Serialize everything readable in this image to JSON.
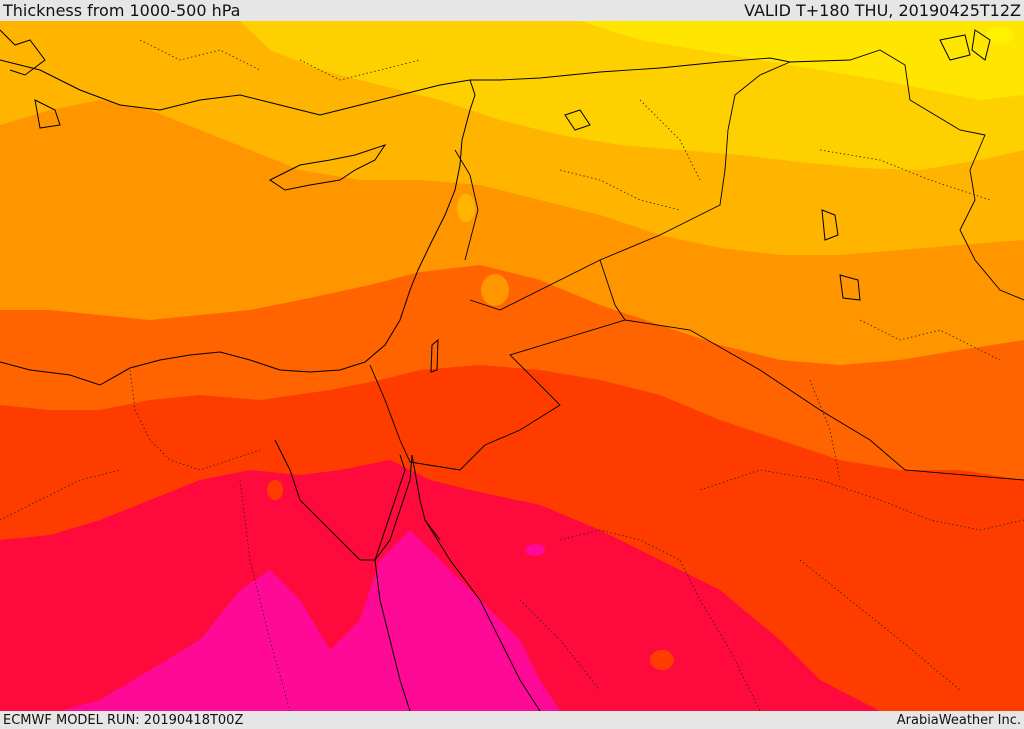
{
  "header": {
    "title": "Thickness from 1000-500 hPa",
    "valid_time": "VALID T+180 THU, 20190425T12Z"
  },
  "footer": {
    "model_run": "ECMWF MODEL RUN: 20190418T00Z",
    "credit": "ArabiaWeather Inc."
  },
  "map": {
    "field": "1000-500 hPa thickness",
    "palette": {
      "band_yellow": "#ffe600",
      "band_gold": "#ffd000",
      "band_amber": "#ffb400",
      "band_orange": "#ff9600",
      "band_dark_orange": "#ff6400",
      "band_red_orange": "#ff3c00",
      "band_red": "#ff0a3c",
      "band_magenta": "#ff0a96",
      "border_line": "#000000"
    }
  }
}
